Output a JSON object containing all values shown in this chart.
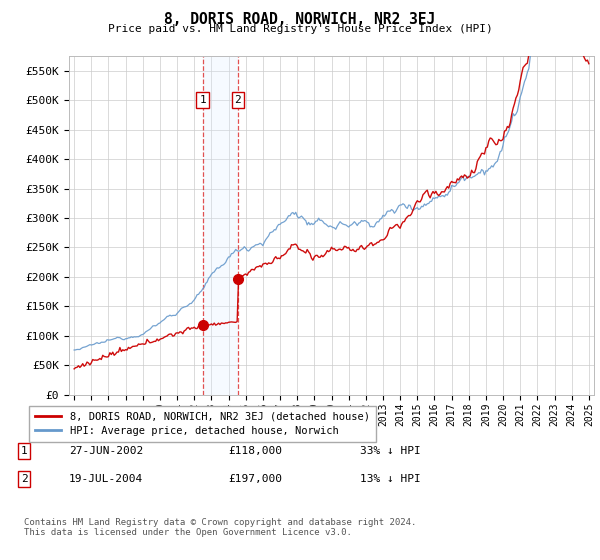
{
  "title": "8, DORIS ROAD, NORWICH, NR2 3EJ",
  "subtitle": "Price paid vs. HM Land Registry's House Price Index (HPI)",
  "ylabel_ticks": [
    "£0",
    "£50K",
    "£100K",
    "£150K",
    "£200K",
    "£250K",
    "£300K",
    "£350K",
    "£400K",
    "£450K",
    "£500K",
    "£550K"
  ],
  "ytick_values": [
    0,
    50000,
    100000,
    150000,
    200000,
    250000,
    300000,
    350000,
    400000,
    450000,
    500000,
    550000
  ],
  "ylim": [
    0,
    575000
  ],
  "xlim_start": 1994.7,
  "xlim_end": 2025.3,
  "years_start": 1995,
  "years_end": 2025,
  "transaction1_date": "27-JUN-2002",
  "transaction1_price": 118000,
  "transaction1_label": "33% ↓ HPI",
  "transaction2_date": "19-JUL-2004",
  "transaction2_price": 197000,
  "transaction2_label": "13% ↓ HPI",
  "transaction1_x": 2002.49,
  "transaction2_x": 2004.55,
  "sale_color": "#cc0000",
  "hpi_color": "#6699cc",
  "span_color": "#ddeeff",
  "legend_label1": "8, DORIS ROAD, NORWICH, NR2 3EJ (detached house)",
  "legend_label2": "HPI: Average price, detached house, Norwich",
  "footnote": "Contains HM Land Registry data © Crown copyright and database right 2024.\nThis data is licensed under the Open Government Licence v3.0.",
  "background_color": "#ffffff",
  "grid_color": "#cccccc"
}
